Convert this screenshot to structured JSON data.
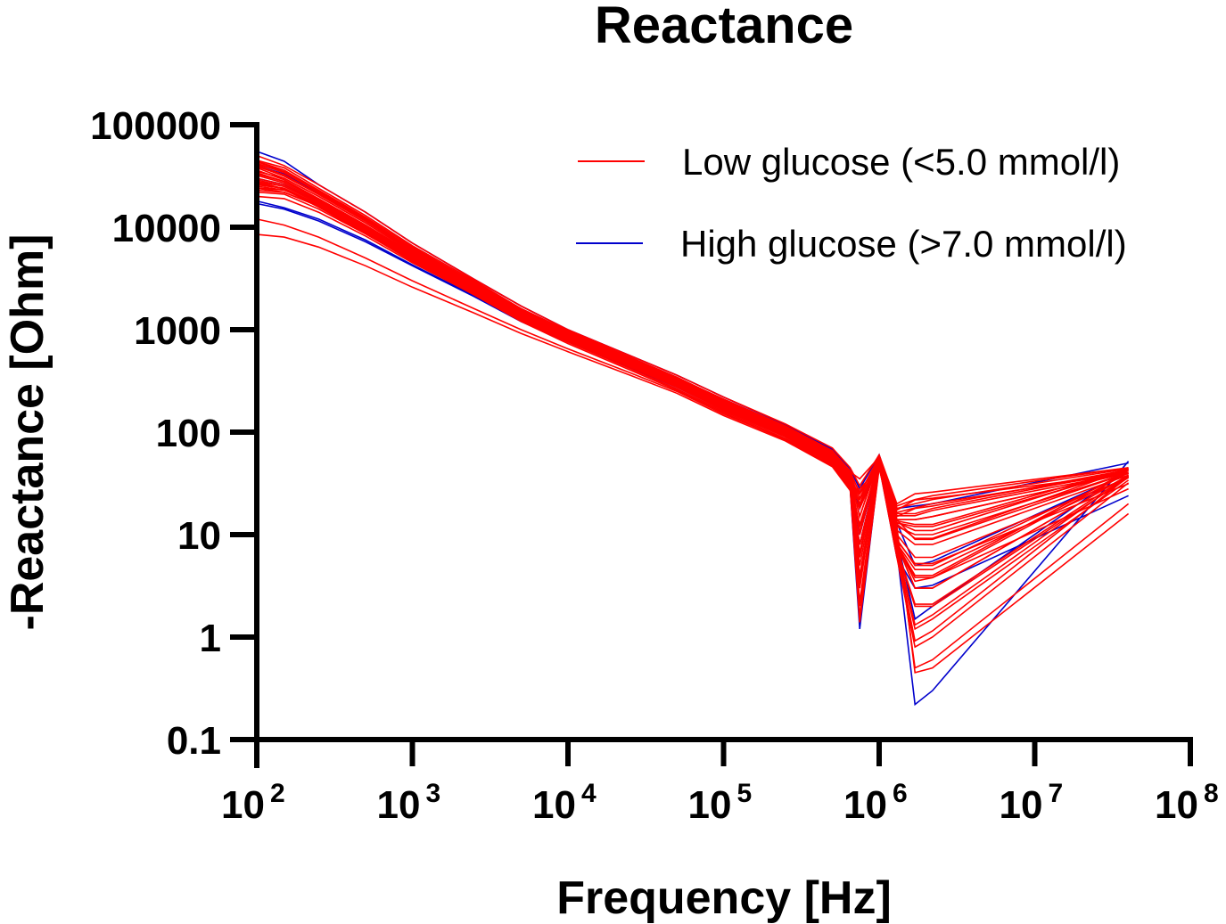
{
  "chart_data": {
    "type": "line",
    "title": "Reactance",
    "xlabel": "Frequency [Hz]",
    "ylabel": "-Reactance [Ohm]",
    "xscale": "log",
    "yscale": "log",
    "xlim": [
      100,
      100000000
    ],
    "ylim": [
      0.1,
      100000
    ],
    "grid": false,
    "legend_position": "top-right",
    "x_ticks": [
      {
        "base": "10",
        "exp": "2",
        "value": 100
      },
      {
        "base": "10",
        "exp": "3",
        "value": 1000
      },
      {
        "base": "10",
        "exp": "4",
        "value": 10000
      },
      {
        "base": "10",
        "exp": "5",
        "value": 100000
      },
      {
        "base": "10",
        "exp": "6",
        "value": 1000000
      },
      {
        "base": "10",
        "exp": "7",
        "value": 10000000
      },
      {
        "base": "10",
        "exp": "8",
        "value": 100000000
      }
    ],
    "y_ticks": [
      {
        "label": "100000",
        "value": 100000
      },
      {
        "label": "10000",
        "value": 10000
      },
      {
        "label": "1000",
        "value": 1000
      },
      {
        "label": "100",
        "value": 100
      },
      {
        "label": "10",
        "value": 10
      },
      {
        "label": "1",
        "value": 1
      },
      {
        "label": "0.1",
        "value": 0.1
      }
    ],
    "x": [
      100,
      150,
      250,
      500,
      1000,
      2500,
      5000,
      10000,
      25000,
      50000,
      100000,
      250000,
      500000,
      650000,
      750000,
      1000000,
      1300000,
      1700000,
      2200000,
      40000000
    ],
    "series_groups": [
      {
        "name": "Low glucose (<5.0 mmol/l)",
        "color": "#ff0000",
        "curves": [
          {
            "y": [
              50000,
              40000,
              26000,
              14000,
              7000,
              3100,
              1700,
              1000,
              560,
              360,
              220,
              120,
              70,
              45,
              30,
              60,
              20,
              25,
              26,
              45
            ]
          },
          {
            "y": [
              45000,
              38000,
              24000,
              13000,
              6600,
              3000,
              1600,
              960,
              540,
              340,
              210,
              115,
              66,
              42,
              25,
              58,
              18,
              20,
              22,
              44
            ]
          },
          {
            "y": [
              42000,
              34000,
              22000,
              12000,
              6200,
              2800,
              1520,
              920,
              520,
              330,
              200,
              110,
              62,
              40,
              20,
              56,
              16,
              16,
              18,
              42
            ]
          },
          {
            "y": [
              40000,
              32000,
              21000,
              11500,
              6000,
              2700,
              1480,
              900,
              500,
              320,
              195,
              105,
              60,
              38,
              15,
              55,
              14,
              14,
              15,
              40
            ]
          },
          {
            "y": [
              38000,
              30000,
              20000,
              11000,
              5800,
              2650,
              1450,
              880,
              490,
              310,
              190,
              102,
              58,
              36,
              10,
              54,
              13,
              12,
              12,
              42
            ]
          },
          {
            "y": [
              36000,
              29000,
              19000,
              10500,
              5600,
              2600,
              1420,
              860,
              480,
              305,
              185,
              100,
              57,
              35,
              6,
              53,
              12,
              10,
              10,
              40
            ]
          },
          {
            "y": [
              34000,
              28000,
              18500,
              10200,
              5400,
              2550,
              1400,
              850,
              470,
              300,
              180,
              98,
              56,
              34,
              3,
              52,
              11,
              8,
              8,
              38
            ]
          },
          {
            "y": [
              32000,
              27000,
              18000,
              10000,
              5300,
              2500,
              1380,
              840,
              465,
              295,
              178,
              96,
              55,
              33,
              1.6,
              51,
              10,
              6,
              6,
              36
            ]
          },
          {
            "y": [
              30000,
              26000,
              17500,
              9800,
              5200,
              2450,
              1350,
              830,
              460,
              290,
              175,
              95,
              54,
              32,
              2.2,
              50,
              9,
              5,
              5,
              40
            ]
          },
          {
            "y": [
              28000,
              25000,
              17000,
              9500,
              5100,
              2400,
              1320,
              820,
              455,
              288,
              172,
              94,
              53,
              31,
              4,
              50,
              8,
              4,
              4,
              42
            ]
          },
          {
            "y": [
              26000,
              24000,
              16500,
              9200,
              5000,
              2350,
              1300,
              810,
              450,
              285,
              170,
              93,
              52,
              30,
              8,
              49,
              8,
              3,
              3,
              38
            ]
          },
          {
            "y": [
              24000,
              22000,
              16000,
              9000,
              4900,
              2300,
              1280,
              800,
              445,
              282,
              168,
              92,
              51,
              30,
              12,
              48,
              7,
              2,
              2,
              36
            ]
          },
          {
            "y": [
              22000,
              21000,
              15000,
              8600,
              4700,
              2250,
              1260,
              790,
              440,
              280,
              166,
              91,
              50,
              29,
              18,
              48,
              7,
              1.2,
              1.5,
              34
            ]
          },
          {
            "y": [
              20000,
              19000,
              14000,
              8200,
              4500,
              2200,
              1240,
              780,
              435,
              278,
              164,
              90,
              50,
              29,
              22,
              47,
              6,
              0.8,
              1,
              32
            ]
          },
          {
            "y": [
              12000,
              10500,
              8000,
              5000,
              3000,
              1600,
              1000,
              650,
              380,
              250,
              150,
              85,
              47,
              28,
              25,
              46,
              10,
              0.5,
              0.6,
              20
            ]
          },
          {
            "y": [
              8500,
              8000,
              6400,
              4200,
              2600,
              1450,
              920,
              610,
              360,
              240,
              145,
              82,
              46,
              27,
              28,
              45,
              12,
              0.45,
              0.5,
              16
            ]
          },
          {
            "y": [
              44000,
              36000,
              23000,
              12500,
              6400,
              2900,
              1560,
              940,
              530,
              335,
              205,
              112,
              64,
              41,
              35,
              57,
              19,
              22,
              24,
              45
            ]
          },
          {
            "y": [
              35000,
              30000,
              20000,
              11000,
              5700,
              2600,
              1440,
              870,
              485,
              308,
              188,
              101,
              58,
              36,
              12,
              53,
              14,
              9,
              9,
              40
            ]
          },
          {
            "y": [
              29000,
              25000,
              17200,
              9700,
              5150,
              2420,
              1330,
              825,
              458,
              289,
              173,
              94,
              53,
              31,
              5,
              50,
              8,
              3.5,
              3.8,
              28
            ]
          },
          {
            "y": [
              33000,
              28000,
              18800,
              10300,
              5450,
              2560,
              1410,
              855,
              472,
              302,
              182,
              99,
              56,
              34,
              20,
              52,
              15,
              18,
              19,
              43
            ]
          }
        ]
      },
      {
        "name": "High glucose (>7.0 mmol/l)",
        "color": "#0000cc",
        "curves": [
          {
            "y": [
              55000,
              44000,
              26000,
              14000,
              7000,
              3100,
              1700,
              1000,
              560,
              360,
              220,
              118,
              68,
              44,
              28,
              60,
              18,
              19,
              20,
              50
            ]
          },
          {
            "y": [
              17000,
              15000,
              11500,
              7200,
              4200,
              2100,
              1200,
              760,
              430,
              275,
              165,
              90,
              50,
              29,
              1.2,
              47,
              7,
              0.22,
              0.3,
              52
            ]
          },
          {
            "y": [
              18000,
              15500,
              12000,
              7500,
              4300,
              2150,
              1230,
              770,
              432,
              278,
              166,
              92,
              51,
              30,
              8,
              48,
              6,
              3,
              3.2,
              24
            ]
          },
          {
            "y": [
              40000,
              33000,
              21500,
              11800,
              6100,
              2750,
              1500,
              910,
              505,
              322,
              198,
              104,
              60,
              38,
              18,
              55,
              13,
              5,
              5.5,
              40
            ]
          },
          {
            "y": [
              30000,
              26000,
              17600,
              9900,
              5250,
              2480,
              1360,
              835,
              462,
              292,
              176,
              95,
              54,
              32,
              10,
              51,
              9,
              1.5,
              2,
              44
            ]
          }
        ]
      }
    ]
  },
  "legend": {
    "items": [
      {
        "label": "Low glucose (<5.0 mmol/l)",
        "color": "#ff0000"
      },
      {
        "label": "High glucose (>7.0 mmol/l)",
        "color": "#0000cc"
      }
    ]
  }
}
